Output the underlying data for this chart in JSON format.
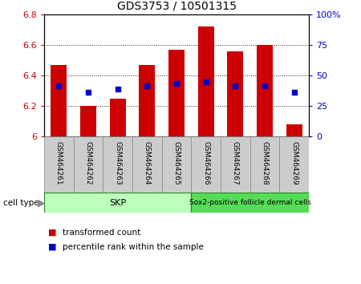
{
  "title": "GDS3753 / 10501315",
  "samples": [
    "GSM464261",
    "GSM464262",
    "GSM464263",
    "GSM464264",
    "GSM464265",
    "GSM464266",
    "GSM464267",
    "GSM464268",
    "GSM464269"
  ],
  "bar_values": [
    6.47,
    6.2,
    6.25,
    6.47,
    6.57,
    6.72,
    6.56,
    6.6,
    6.08
  ],
  "percentile_values": [
    6.33,
    6.29,
    6.31,
    6.33,
    6.35,
    6.36,
    6.33,
    6.33,
    6.29
  ],
  "ymin": 6.0,
  "ymax": 6.8,
  "bar_color": "#cc0000",
  "percentile_color": "#0000cc",
  "bar_width": 0.55,
  "skp_color": "#bbffbb",
  "sox_color": "#55dd55",
  "legend_bar_label": "transformed count",
  "legend_pct_label": "percentile rank within the sample",
  "cell_type_label": "cell type",
  "right_yticks": [
    0,
    25,
    50,
    75,
    100
  ],
  "right_yticklabels": [
    "0",
    "25",
    "50",
    "75",
    "100%"
  ],
  "left_yticks": [
    6.0,
    6.2,
    6.4,
    6.6,
    6.8
  ],
  "left_yticklabels": [
    "6",
    "6.2",
    "6.4",
    "6.6",
    "6.8"
  ],
  "background_color": "#ffffff",
  "plot_bg_color": "#ffffff",
  "ylabel_left_color": "#cc0000",
  "ylabel_right_color": "#0000cc",
  "ticklabel_gray_bg": "#cccccc",
  "spine_color": "#000000"
}
